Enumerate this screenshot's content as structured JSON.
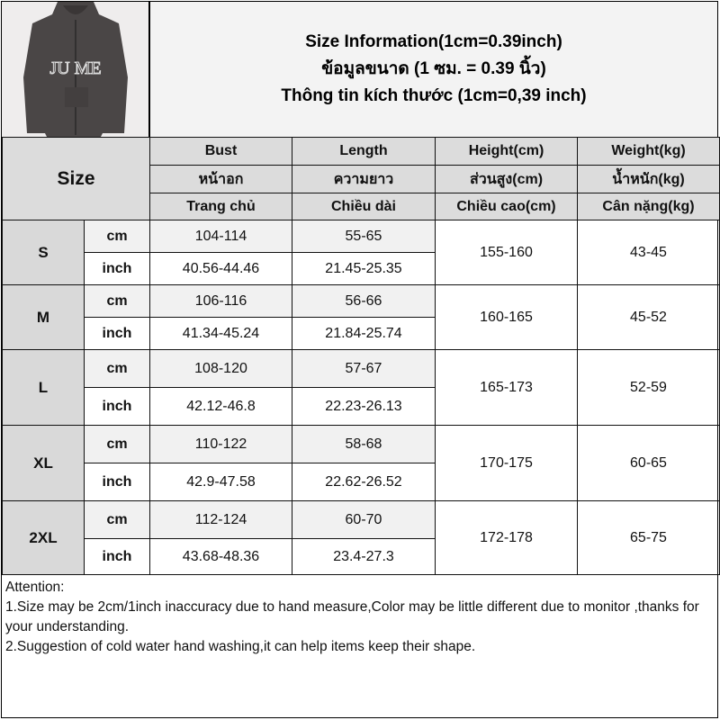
{
  "title": {
    "line1": "Size Information(1cm=0.39inch)",
    "line2": "ข้อมูลขนาด (1 ซม. = 0.39 นิ้ว)",
    "line3": "Thông tin kích thước (1cm=0,39 inch)"
  },
  "header": {
    "size": "Size",
    "columns": [
      {
        "en": "Bust",
        "th": "หน้าอก",
        "vi": "Trang chủ"
      },
      {
        "en": "Length",
        "th": "ความยาว",
        "vi": "Chiều dài"
      },
      {
        "en": "Height(cm)",
        "th": "ส่วนสูง(cm)",
        "vi": "Chiều cao(cm)"
      },
      {
        "en": "Weight(kg)",
        "th": "น้ำหนัก(kg)",
        "vi": "Cân nặng(kg)"
      }
    ]
  },
  "units": {
    "cm": "cm",
    "inch": "inch"
  },
  "rows": [
    {
      "size": "S",
      "bust_cm": "104-114",
      "length_cm": "55-65",
      "bust_in": "40.56-44.46",
      "length_in": "21.45-25.35",
      "height": "155-160",
      "weight": "43-45"
    },
    {
      "size": "M",
      "bust_cm": "106-116",
      "length_cm": "56-66",
      "bust_in": "41.34-45.24",
      "length_in": "21.84-25.74",
      "height": "160-165",
      "weight": "45-52"
    },
    {
      "size": "L",
      "bust_cm": "108-120",
      "length_cm": "57-67",
      "bust_in": "42.12-46.8",
      "length_in": "22.23-26.13",
      "height": "165-173",
      "weight": "52-59"
    },
    {
      "size": "XL",
      "bust_cm": "110-122",
      "length_cm": "58-68",
      "bust_in": "42.9-47.58",
      "length_in": "22.62-26.52",
      "height": "170-175",
      "weight": "60-65"
    },
    {
      "size": "2XL",
      "bust_cm": "112-124",
      "length_cm": "60-70",
      "bust_in": "43.68-48.36",
      "length_in": "23.4-27.3",
      "height": "172-178",
      "weight": "65-75"
    }
  ],
  "attention": {
    "heading": "Attention:",
    "note1": "1.Size may be 2cm/1inch inaccuracy due to hand measure,Color may be little different due to monitor ,thanks for your understanding.",
    "note2": "2.Suggestion of cold water hand washing,it can help items keep their shape."
  },
  "photo": {
    "print_text": "JU ME"
  }
}
